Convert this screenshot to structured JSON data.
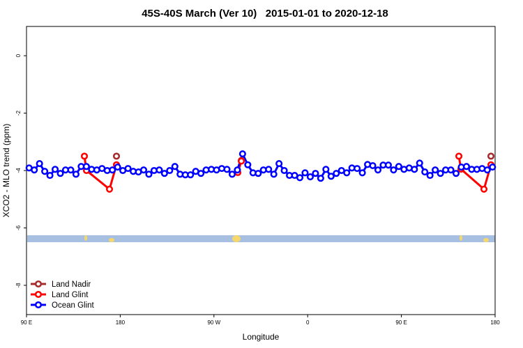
{
  "chart_data": {
    "type": "line",
    "title": "45S-40S March (Ver 10)   2015-01-01 to 2020-12-18",
    "x_label": "Longitude",
    "y_label": "XCO2 - MLO trend (ppm)",
    "xlim": [
      90,
      540
    ],
    "xticks": [
      {
        "value": 90,
        "label": "90 E"
      },
      180,
      {
        "value": 270,
        "label": "90 W"
      },
      {
        "value": 360,
        "label": "0"
      },
      {
        "value": 450,
        "label": "90 E"
      },
      {
        "value": 540,
        "label": "180"
      }
    ],
    "ylim": [
      -9.02,
      1.02
    ],
    "yticks": [
      0,
      -2,
      -4,
      -6,
      -8
    ],
    "legend": "bottom-left",
    "series": [
      {
        "name": "Land Nadir",
        "color": "#a52a2a",
        "x": [
          176.4,
          null,
          296.3,
          null,
          507.2,
          null,
          536.0
        ],
        "values": [
          -3.5,
          null,
          -3.65,
          null,
          -3.95,
          null,
          -3.5
        ]
      },
      {
        "name": "Land Glint",
        "color": "#ff0000",
        "x": [
          145.6,
          147.6,
          169.7,
          176.4,
          null,
          292.9,
          296.3,
          null,
          505.2,
          507.2,
          529.3,
          536.0
        ],
        "values": [
          -3.5,
          -4.0,
          -4.65,
          -3.8,
          null,
          -4.07,
          -3.67,
          null,
          -3.5,
          -3.95,
          -4.65,
          -3.8
        ]
      },
      {
        "name": "Ocean Glint",
        "color": "#0000ff",
        "x": [
          92.5,
          97.5,
          102.5,
          107.5,
          112.5,
          117.5,
          122.5,
          127.5,
          132.5,
          137.5,
          142.5,
          147.5,
          152.5,
          157.5,
          162.5,
          167.5,
          172.5,
          177.5,
          182.5,
          187.5,
          192.5,
          197.5,
          202.5,
          207.5,
          212.5,
          217.5,
          222.5,
          227.5,
          232.5,
          237.5,
          242.5,
          247.5,
          252.5,
          257.5,
          262.5,
          267.5,
          272.5,
          277.5,
          282.5,
          287.5,
          292.5,
          297.5,
          302.5,
          307.5,
          312.5,
          317.5,
          322.5,
          327.5,
          332.5,
          337.5,
          342.5,
          347.5,
          352.5,
          357.5,
          362.5,
          367.5,
          372.5,
          377.5,
          382.5,
          387.5,
          392.5,
          397.5,
          402.5,
          407.5,
          412.5,
          417.5,
          422.5,
          427.5,
          432.5,
          437.5,
          442.5,
          447.5,
          452.5,
          457.5,
          462.5,
          467.5,
          472.5,
          477.5,
          482.5,
          487.5,
          492.5,
          497.5,
          502.5,
          507.5,
          512.5,
          517.5,
          522.5,
          527.5,
          532.5,
          537.5
        ],
        "values": [
          -3.91,
          -3.98,
          -3.76,
          -4.03,
          -4.17,
          -3.96,
          -4.1,
          -3.98,
          -3.98,
          -4.13,
          -3.86,
          -3.86,
          -3.96,
          -3.98,
          -3.93,
          -4.0,
          -3.98,
          -3.88,
          -4.0,
          -3.93,
          -4.03,
          -4.05,
          -3.98,
          -4.13,
          -4.0,
          -3.98,
          -4.1,
          -4.0,
          -3.86,
          -4.13,
          -4.15,
          -4.15,
          -4.03,
          -4.1,
          -3.98,
          -3.96,
          -3.98,
          -3.93,
          -3.96,
          -4.13,
          -3.98,
          -3.42,
          -3.8,
          -4.08,
          -4.1,
          -3.98,
          -3.96,
          -4.13,
          -3.76,
          -4.0,
          -4.17,
          -4.17,
          -4.25,
          -4.08,
          -4.22,
          -4.1,
          -4.27,
          -3.96,
          -4.2,
          -4.1,
          -4.0,
          -4.08,
          -3.91,
          -3.93,
          -4.08,
          -3.79,
          -3.83,
          -3.98,
          -3.81,
          -3.81,
          -3.98,
          -3.86,
          -3.96,
          -3.91,
          -3.96,
          -3.74,
          -4.05,
          -4.17,
          -3.98,
          -4.1,
          -3.98,
          -3.98,
          -4.1,
          -3.88,
          -3.86,
          -3.96,
          -3.96,
          -3.93,
          -3.98,
          -3.88
        ]
      }
    ]
  }
}
